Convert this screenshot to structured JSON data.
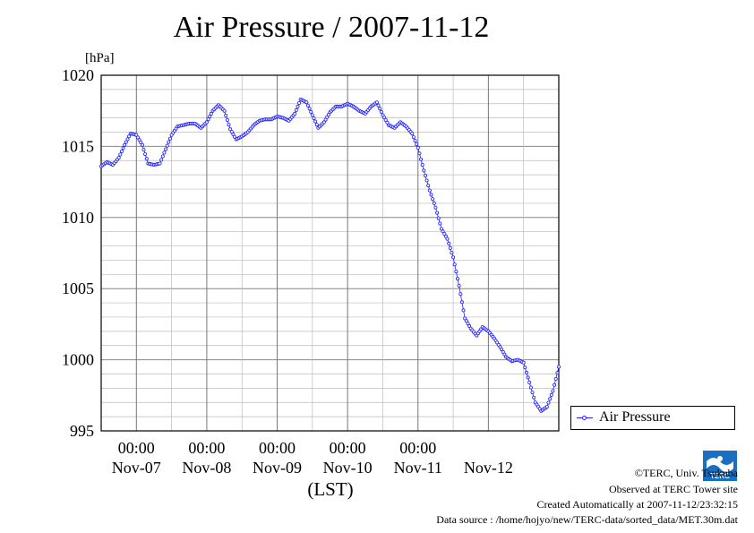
{
  "page": {
    "title": "Air Pressure / 2007-11-12",
    "logo_text": "TERC",
    "credits": [
      "©TERC, Univ. Tsukuba",
      "Observed at TERC Tower site",
      "Created Automatically at 2007-11-12/23:32:15",
      "Data source : /home/hojyo/new/TERC-data/sorted_data/MET.30m.dat"
    ]
  },
  "chart_data": {
    "type": "line",
    "title": "Air Pressure / 2007-11-12",
    "ylabel": "[hPa]",
    "xlabel": "(LST)",
    "ylim": [
      995,
      1020
    ],
    "yticks": [
      995,
      1000,
      1005,
      1010,
      1015,
      1020
    ],
    "xlim": [
      "2007-11-06 12:00",
      "2007-11-12 24:00"
    ],
    "xtick_time_labels": [
      "00:00",
      "00:00",
      "00:00",
      "00:00",
      "00:00"
    ],
    "xtick_date_labels": [
      "Nov-07",
      "Nov-08",
      "Nov-09",
      "Nov-10",
      "Nov-11",
      "Nov-12"
    ],
    "grid": true,
    "legend_position": "right",
    "colors": {
      "series": "#2020ff",
      "grid": "#999999"
    },
    "series": [
      {
        "name": "Air Pressure",
        "marker": "circle",
        "points": [
          [
            "2007-11-06 12:00",
            1013.6
          ],
          [
            "2007-11-06 14:00",
            1013.9
          ],
          [
            "2007-11-06 16:00",
            1013.7
          ],
          [
            "2007-11-06 18:00",
            1014.2
          ],
          [
            "2007-11-06 20:00",
            1015.1
          ],
          [
            "2007-11-06 22:00",
            1015.9
          ],
          [
            "2007-11-07 00:00",
            1015.8
          ],
          [
            "2007-11-07 02:00",
            1015.1
          ],
          [
            "2007-11-07 04:00",
            1013.8
          ],
          [
            "2007-11-07 06:00",
            1013.7
          ],
          [
            "2007-11-07 08:00",
            1013.8
          ],
          [
            "2007-11-07 10:00",
            1014.8
          ],
          [
            "2007-11-07 12:00",
            1015.8
          ],
          [
            "2007-11-07 14:00",
            1016.4
          ],
          [
            "2007-11-07 16:00",
            1016.5
          ],
          [
            "2007-11-07 18:00",
            1016.6
          ],
          [
            "2007-11-07 20:00",
            1016.6
          ],
          [
            "2007-11-07 22:00",
            1016.3
          ],
          [
            "2007-11-08 00:00",
            1016.7
          ],
          [
            "2007-11-08 02:00",
            1017.5
          ],
          [
            "2007-11-08 04:00",
            1017.9
          ],
          [
            "2007-11-08 06:00",
            1017.5
          ],
          [
            "2007-11-08 08:00",
            1016.2
          ],
          [
            "2007-11-08 10:00",
            1015.5
          ],
          [
            "2007-11-08 12:00",
            1015.7
          ],
          [
            "2007-11-08 14:00",
            1016.0
          ],
          [
            "2007-11-08 16:00",
            1016.5
          ],
          [
            "2007-11-08 18:00",
            1016.8
          ],
          [
            "2007-11-08 20:00",
            1016.9
          ],
          [
            "2007-11-08 22:00",
            1016.9
          ],
          [
            "2007-11-09 00:00",
            1017.1
          ],
          [
            "2007-11-09 02:00",
            1017.0
          ],
          [
            "2007-11-09 04:00",
            1016.8
          ],
          [
            "2007-11-09 06:00",
            1017.3
          ],
          [
            "2007-11-09 08:00",
            1018.3
          ],
          [
            "2007-11-09 10:00",
            1018.1
          ],
          [
            "2007-11-09 12:00",
            1017.2
          ],
          [
            "2007-11-09 14:00",
            1016.3
          ],
          [
            "2007-11-09 16:00",
            1016.7
          ],
          [
            "2007-11-09 18:00",
            1017.4
          ],
          [
            "2007-11-09 20:00",
            1017.8
          ],
          [
            "2007-11-09 22:00",
            1017.8
          ],
          [
            "2007-11-10 00:00",
            1018.0
          ],
          [
            "2007-11-10 02:00",
            1017.8
          ],
          [
            "2007-11-10 04:00",
            1017.5
          ],
          [
            "2007-11-10 06:00",
            1017.3
          ],
          [
            "2007-11-10 08:00",
            1017.8
          ],
          [
            "2007-11-10 10:00",
            1018.1
          ],
          [
            "2007-11-10 12:00",
            1017.2
          ],
          [
            "2007-11-10 14:00",
            1016.5
          ],
          [
            "2007-11-10 16:00",
            1016.3
          ],
          [
            "2007-11-10 18:00",
            1016.7
          ],
          [
            "2007-11-10 20:00",
            1016.4
          ],
          [
            "2007-11-10 22:00",
            1015.9
          ],
          [
            "2007-11-11 00:00",
            1014.9
          ],
          [
            "2007-11-11 02:00",
            1013.3
          ],
          [
            "2007-11-11 04:00",
            1011.9
          ],
          [
            "2007-11-11 06:00",
            1010.7
          ],
          [
            "2007-11-11 08:00",
            1009.2
          ],
          [
            "2007-11-11 10:00",
            1008.5
          ],
          [
            "2007-11-11 12:00",
            1007.2
          ],
          [
            "2007-11-11 14:00",
            1005.2
          ],
          [
            "2007-11-11 16:00",
            1002.9
          ],
          [
            "2007-11-11 18:00",
            1002.2
          ],
          [
            "2007-11-11 20:00",
            1001.7
          ],
          [
            "2007-11-11 22:00",
            1002.3
          ],
          [
            "2007-11-12 00:00",
            1002.0
          ],
          [
            "2007-11-12 02:00",
            1001.5
          ],
          [
            "2007-11-12 04:00",
            1000.9
          ],
          [
            "2007-11-12 06:00",
            1000.2
          ],
          [
            "2007-11-12 08:00",
            999.9
          ],
          [
            "2007-11-12 10:00",
            1000.0
          ],
          [
            "2007-11-12 12:00",
            999.8
          ],
          [
            "2007-11-12 14:00",
            998.4
          ],
          [
            "2007-11-12 16:00",
            997.0
          ],
          [
            "2007-11-12 18:00",
            996.4
          ],
          [
            "2007-11-12 20:00",
            996.7
          ],
          [
            "2007-11-12 22:00",
            997.8
          ],
          [
            "2007-11-12 24:00",
            999.5
          ]
        ]
      }
    ]
  }
}
